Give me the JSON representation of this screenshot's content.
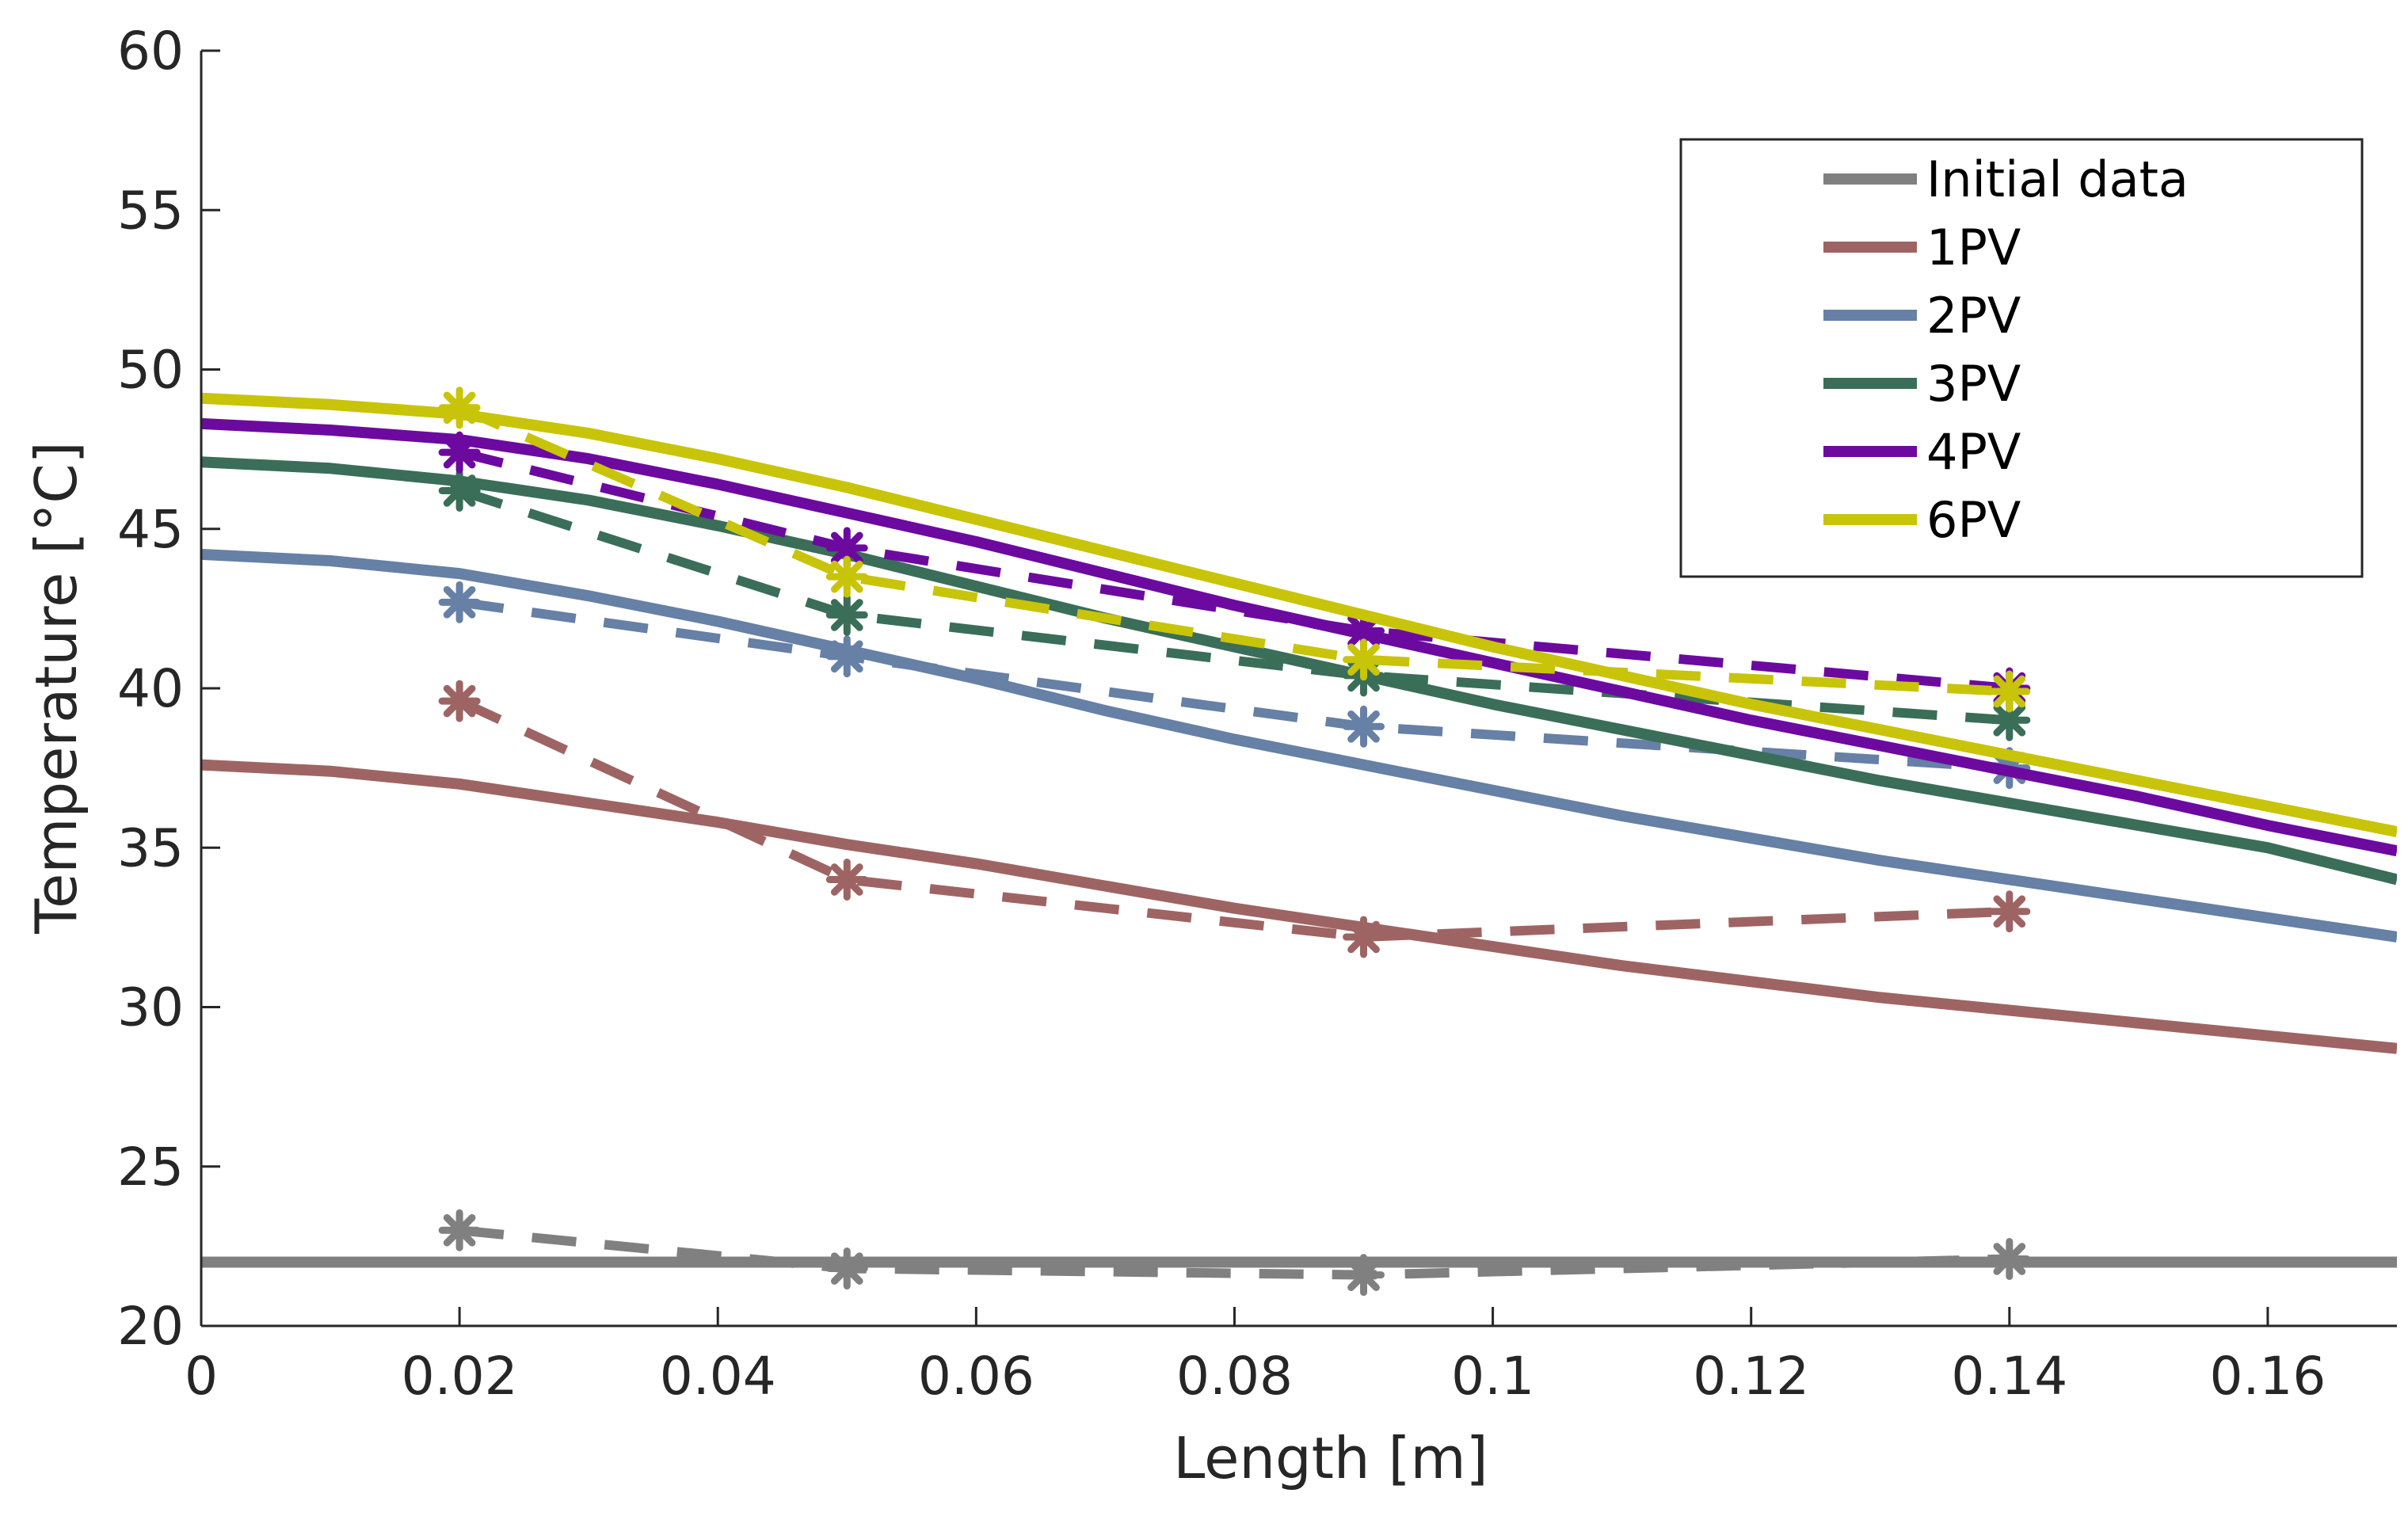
{
  "chart_data": {
    "type": "line",
    "title": "",
    "xlabel": "Length [m]",
    "ylabel": "Temperature [°C]",
    "xlim": [
      0,
      0.17
    ],
    "ylim": [
      20,
      60
    ],
    "xticks": [
      0,
      0.02,
      0.04,
      0.06,
      0.08,
      0.1,
      0.12,
      0.14,
      0.16
    ],
    "xtick_labels": [
      "0",
      "0.02",
      "0.04",
      "0.06",
      "0.08",
      "0.1",
      "0.12",
      "0.14",
      "0.16"
    ],
    "yticks": [
      20,
      25,
      30,
      35,
      40,
      45,
      50,
      55,
      60
    ],
    "ytick_labels": [
      "20",
      "25",
      "30",
      "35",
      "40",
      "45",
      "50",
      "55",
      "60"
    ],
    "grid": false,
    "legend_position": "top-right",
    "series": [
      {
        "name": "Initial data",
        "color": "#808080",
        "model": {
          "x": [
            0,
            0.02,
            0.04,
            0.06,
            0.08,
            0.1,
            0.12,
            0.14,
            0.16,
            0.17
          ],
          "y": [
            22.0,
            22.0,
            22.0,
            22.0,
            22.0,
            22.0,
            22.0,
            22.0,
            22.0,
            22.0
          ]
        },
        "measured": {
          "x": [
            0.02,
            0.05,
            0.09,
            0.14
          ],
          "y": [
            23.0,
            21.8,
            21.6,
            22.1
          ]
        }
      },
      {
        "name": "1PV",
        "color": "#9e6464",
        "model": {
          "x": [
            0,
            0.01,
            0.02,
            0.03,
            0.04,
            0.05,
            0.06,
            0.07,
            0.08,
            0.09,
            0.1,
            0.11,
            0.12,
            0.13,
            0.14,
            0.15,
            0.16,
            0.17
          ],
          "y": [
            37.6,
            37.4,
            37.0,
            36.4,
            35.8,
            35.1,
            34.5,
            33.8,
            33.1,
            32.5,
            31.9,
            31.3,
            30.8,
            30.3,
            29.9,
            29.5,
            29.1,
            28.7
          ]
        },
        "measured": {
          "x": [
            0.02,
            0.05,
            0.09,
            0.14
          ],
          "y": [
            39.6,
            34.0,
            32.2,
            33.0
          ]
        }
      },
      {
        "name": "2PV",
        "color": "#6680a6",
        "model": {
          "x": [
            0,
            0.01,
            0.02,
            0.03,
            0.04,
            0.05,
            0.06,
            0.07,
            0.08,
            0.09,
            0.1,
            0.11,
            0.12,
            0.13,
            0.14,
            0.15,
            0.16,
            0.17
          ],
          "y": [
            44.2,
            44.0,
            43.6,
            42.9,
            42.1,
            41.2,
            40.3,
            39.3,
            38.4,
            37.6,
            36.8,
            36.0,
            35.3,
            34.6,
            34.0,
            33.4,
            32.8,
            32.2
          ]
        },
        "measured": {
          "x": [
            0.02,
            0.05,
            0.09,
            0.14
          ],
          "y": [
            42.7,
            41.0,
            38.8,
            37.5
          ]
        }
      },
      {
        "name": "3PV",
        "color": "#3a6e58",
        "model": {
          "x": [
            0,
            0.01,
            0.02,
            0.03,
            0.04,
            0.05,
            0.06,
            0.07,
            0.08,
            0.09,
            0.1,
            0.11,
            0.12,
            0.13,
            0.14,
            0.15,
            0.16,
            0.17
          ],
          "y": [
            47.1,
            46.9,
            46.5,
            45.9,
            45.1,
            44.2,
            43.2,
            42.2,
            41.3,
            40.4,
            39.5,
            38.7,
            37.9,
            37.1,
            36.4,
            35.7,
            35.0,
            34.0
          ]
        },
        "measured": {
          "x": [
            0.02,
            0.05,
            0.09,
            0.14
          ],
          "y": [
            46.2,
            42.3,
            40.4,
            39.0
          ]
        }
      },
      {
        "name": "4PV",
        "color": "#6c0aa0",
        "model": {
          "x": [
            0,
            0.01,
            0.02,
            0.03,
            0.04,
            0.05,
            0.06,
            0.07,
            0.08,
            0.09,
            0.1,
            0.11,
            0.12,
            0.13,
            0.14,
            0.15,
            0.16,
            0.17
          ],
          "y": [
            48.3,
            48.1,
            47.8,
            47.2,
            46.4,
            45.5,
            44.6,
            43.6,
            42.6,
            41.7,
            40.8,
            39.9,
            39.0,
            38.2,
            37.4,
            36.6,
            35.7,
            34.9
          ]
        },
        "measured": {
          "x": [
            0.02,
            0.05,
            0.09,
            0.14
          ],
          "y": [
            47.4,
            44.4,
            41.8,
            40.0
          ]
        }
      },
      {
        "name": "6PV",
        "color": "#c8c40a",
        "model": {
          "x": [
            0,
            0.01,
            0.02,
            0.03,
            0.04,
            0.05,
            0.06,
            0.07,
            0.08,
            0.09,
            0.1,
            0.11,
            0.12,
            0.13,
            0.14,
            0.15,
            0.16,
            0.17
          ],
          "y": [
            49.1,
            48.9,
            48.6,
            48.0,
            47.2,
            46.3,
            45.3,
            44.3,
            43.3,
            42.3,
            41.3,
            40.4,
            39.5,
            38.7,
            37.9,
            37.1,
            36.3,
            35.5
          ]
        },
        "measured": {
          "x": [
            0.02,
            0.05,
            0.09,
            0.14
          ],
          "y": [
            48.8,
            43.5,
            40.9,
            39.9
          ]
        }
      }
    ]
  }
}
